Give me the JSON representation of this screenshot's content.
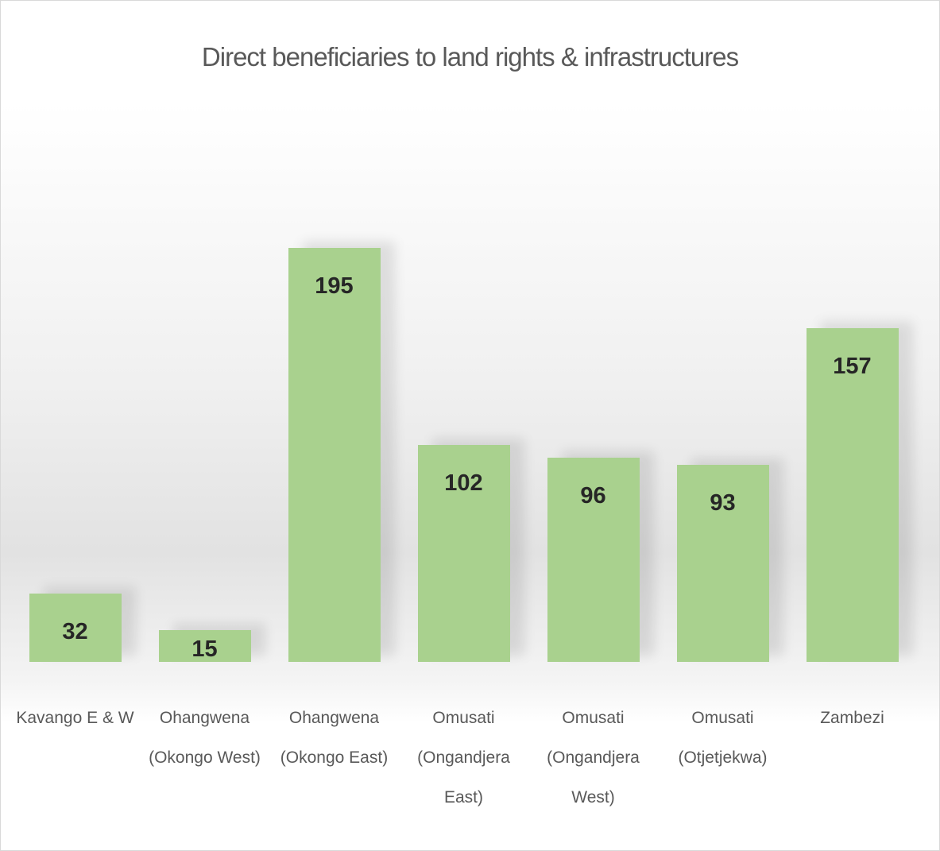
{
  "chart_data": {
    "type": "bar",
    "title": "Direct beneficiaries to land rights & infrastructures",
    "categories": [
      "Kavango E & W",
      "Ohangwena (Okongo West)",
      "Ohangwena (Okongo East)",
      "Omusati (Ongandjera East)",
      "Omusati (Ongandjera West)",
      "Omusati (Otjetjekwa)",
      "Zambezi"
    ],
    "values": [
      32,
      15,
      195,
      102,
      96,
      93,
      157
    ],
    "color": "#a9d18e"
  }
}
